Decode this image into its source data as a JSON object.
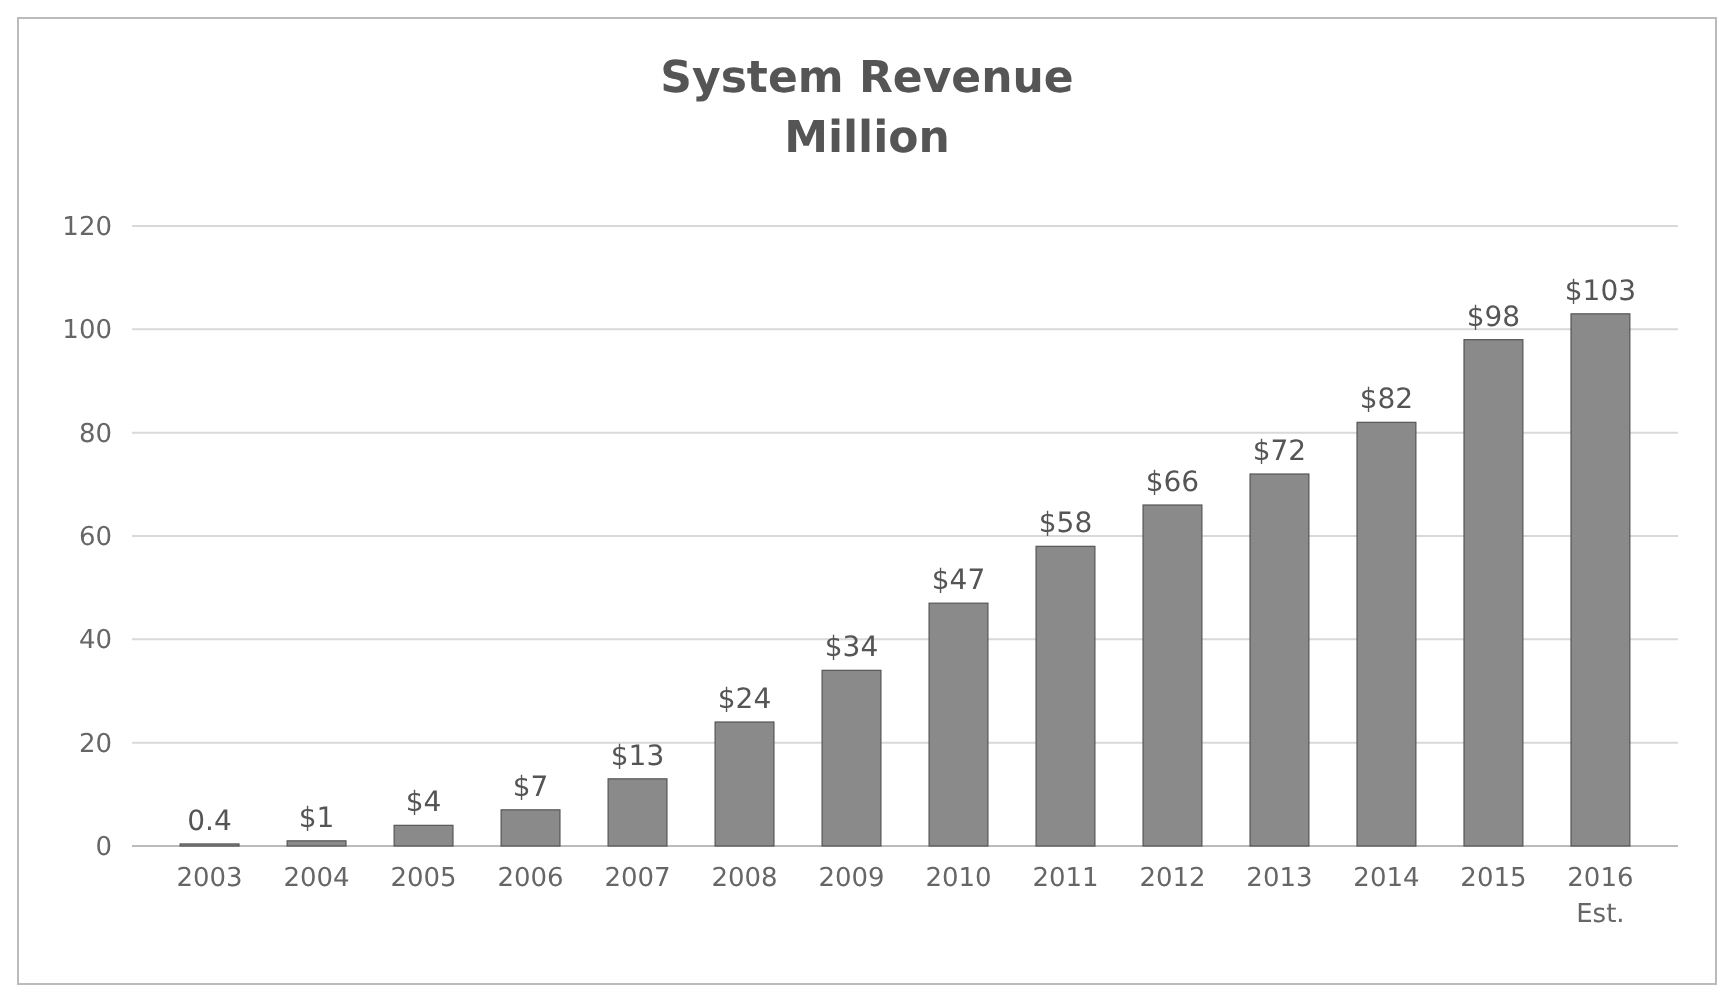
{
  "chart_data": {
    "type": "bar",
    "title": "System Revenue",
    "subtitle": "Million",
    "categories": [
      "2003",
      "2004",
      "2005",
      "2006",
      "2007",
      "2008",
      "2009",
      "2010",
      "2011",
      "2012",
      "2013",
      "2014",
      "2015",
      "2016\nEst."
    ],
    "values": [
      0.4,
      1,
      4,
      7,
      13,
      24,
      34,
      47,
      58,
      66,
      72,
      82,
      98,
      103
    ],
    "value_labels": [
      "0.4",
      "$1",
      "$4",
      "$7",
      "$13",
      "$24",
      "$34",
      "$47",
      "$58",
      "$66",
      "$72",
      "$82",
      "$98",
      "$103"
    ],
    "color": "#8a8a8a",
    "ylim": [
      0,
      120
    ],
    "yticks": [
      0,
      20,
      40,
      60,
      80,
      100,
      120
    ],
    "grid": "y"
  }
}
